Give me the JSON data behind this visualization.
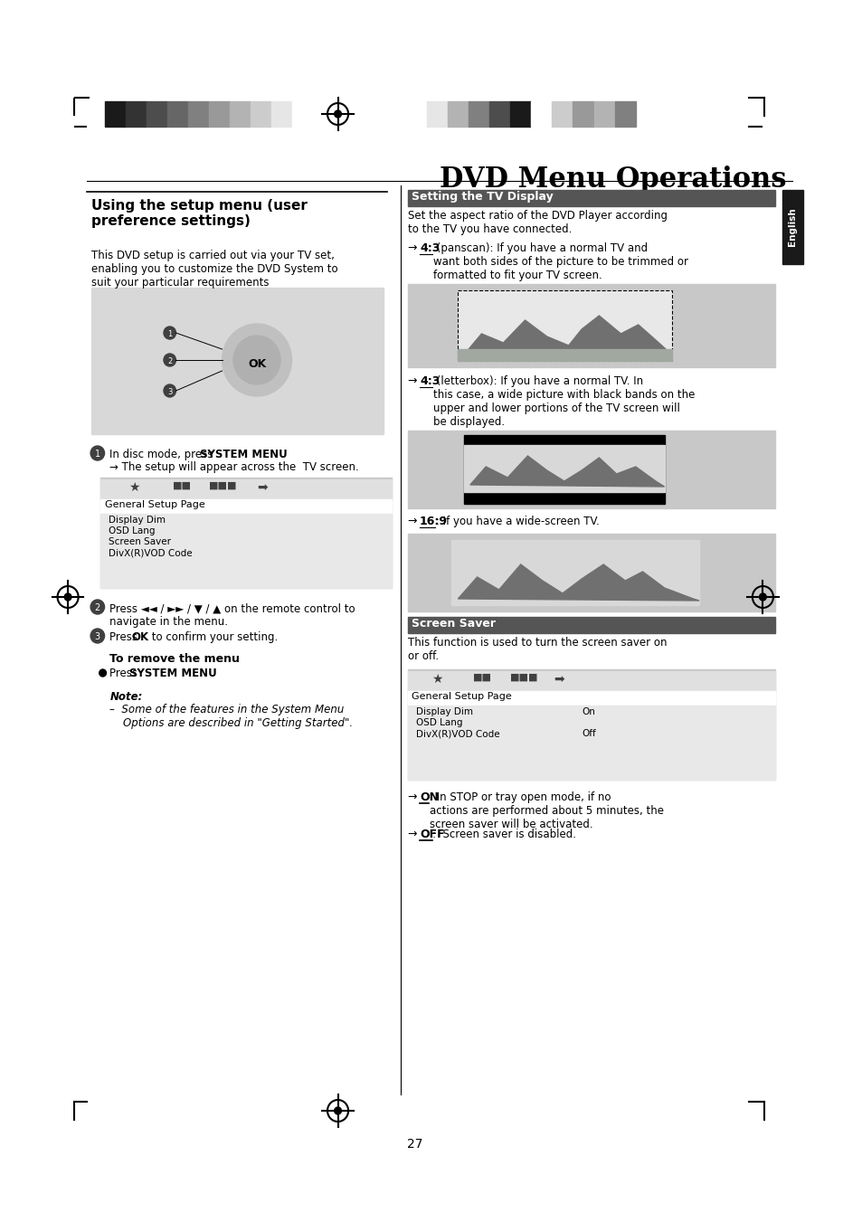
{
  "page_bg": "#ffffff",
  "title": "DVD Menu Operations",
  "left_section_title": "Using the setup menu (user\npreference settings)",
  "left_body1": "This DVD setup is carried out via your TV set,\nenabling you to customize the DVD System to\nsuit your particular requirements",
  "step1_bullet": "In disc mode, press ",
  "step1_bold": "SYSTEM MENU",
  "step1_arrow": "→ The setup will appear across the  TV screen.",
  "step2_text": "Press ◄◄ / ►► / ▼ / ▲ on the remote control to\nnavigate in the menu.",
  "step3_text": "Press ",
  "step3_bold": "OK",
  "step3_rest": " to confirm your setting.",
  "remove_title": "To remove the menu",
  "remove_bullet": "Press ",
  "remove_bold": "SYSTEM MENU",
  "note_title": "Note:",
  "note_body": "–  Some of the features in the System Menu\n    Options are described in \"Getting Started\".",
  "right_section1_title": "Setting the TV Display",
  "right_section1_body": "Set the aspect ratio of the DVD Player according\nto the TV you have connected.",
  "ratio1_arrow": "→ ",
  "ratio1_bold": "4:3",
  "ratio1_rest": " (panscan): If you have a normal TV and\nwant both sides of the picture to be trimmed or\nformatted to fit your TV screen.",
  "ratio2_arrow": "→ ",
  "ratio2_bold": "4:3",
  "ratio2_rest": " (letterbox): If you have a normal TV. In\nthis case, a wide picture with black bands on the\nupper and lower portions of the TV screen will\nbe displayed.",
  "ratio3_arrow": "→ ",
  "ratio3_bold": "16:9",
  "ratio3_rest": ": If you have a wide-screen TV.",
  "right_section2_title": "Screen Saver",
  "right_section2_body": "This function is used to turn the screen saver on\nor off.",
  "on_arrow": "→ ",
  "on_bold": "ON",
  "on_rest": ": In STOP or tray open mode, if no\nactions are performed about 5 minutes, the\nscreen saver will be activated.",
  "off_arrow": "→ ",
  "off_bold": "OFF",
  "off_rest": ":  Screen saver is disabled.",
  "page_number": "27",
  "english_label": "English",
  "header_bar_colors_left": [
    "#1a1a1a",
    "#333333",
    "#4d4d4d",
    "#666666",
    "#808080",
    "#999999",
    "#b3b3b3",
    "#cccccc",
    "#e6e6e6",
    "#ffffff"
  ],
  "header_bar_colors_right": [
    "#e6e6e6",
    "#b3b3b3",
    "#808080",
    "#4d4d4d",
    "#1a1a1a",
    "#ffffff",
    "#cccccc",
    "#999999",
    "#b3b3b3",
    "#808080"
  ],
  "section_header_bg": "#555555",
  "section_header_fg": "#ffffff"
}
